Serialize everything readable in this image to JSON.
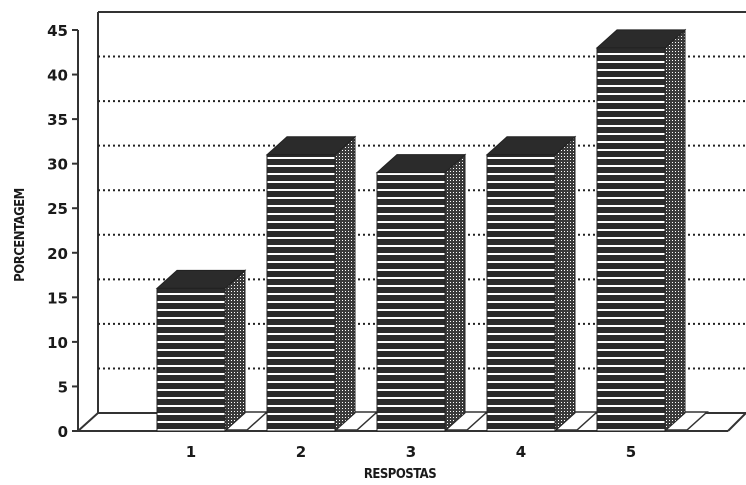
{
  "chart_data": {
    "type": "bar",
    "style": "3d-column",
    "categories": [
      "1",
      "2",
      "3",
      "4",
      "5"
    ],
    "values": [
      16,
      31,
      29,
      31,
      43
    ],
    "xlabel": "RESPOSTAS",
    "ylabel": "PORCENTAGEM",
    "ylim": [
      0,
      45
    ],
    "yticks": [
      "0",
      "5",
      "10",
      "15",
      "20",
      "25",
      "30",
      "35",
      "40",
      "45"
    ],
    "grid": true,
    "legend": "none",
    "colors": {
      "bar": "#2b2b2b",
      "stripe": "#ffffff",
      "grid": "#222222",
      "frame": "#333333"
    }
  }
}
